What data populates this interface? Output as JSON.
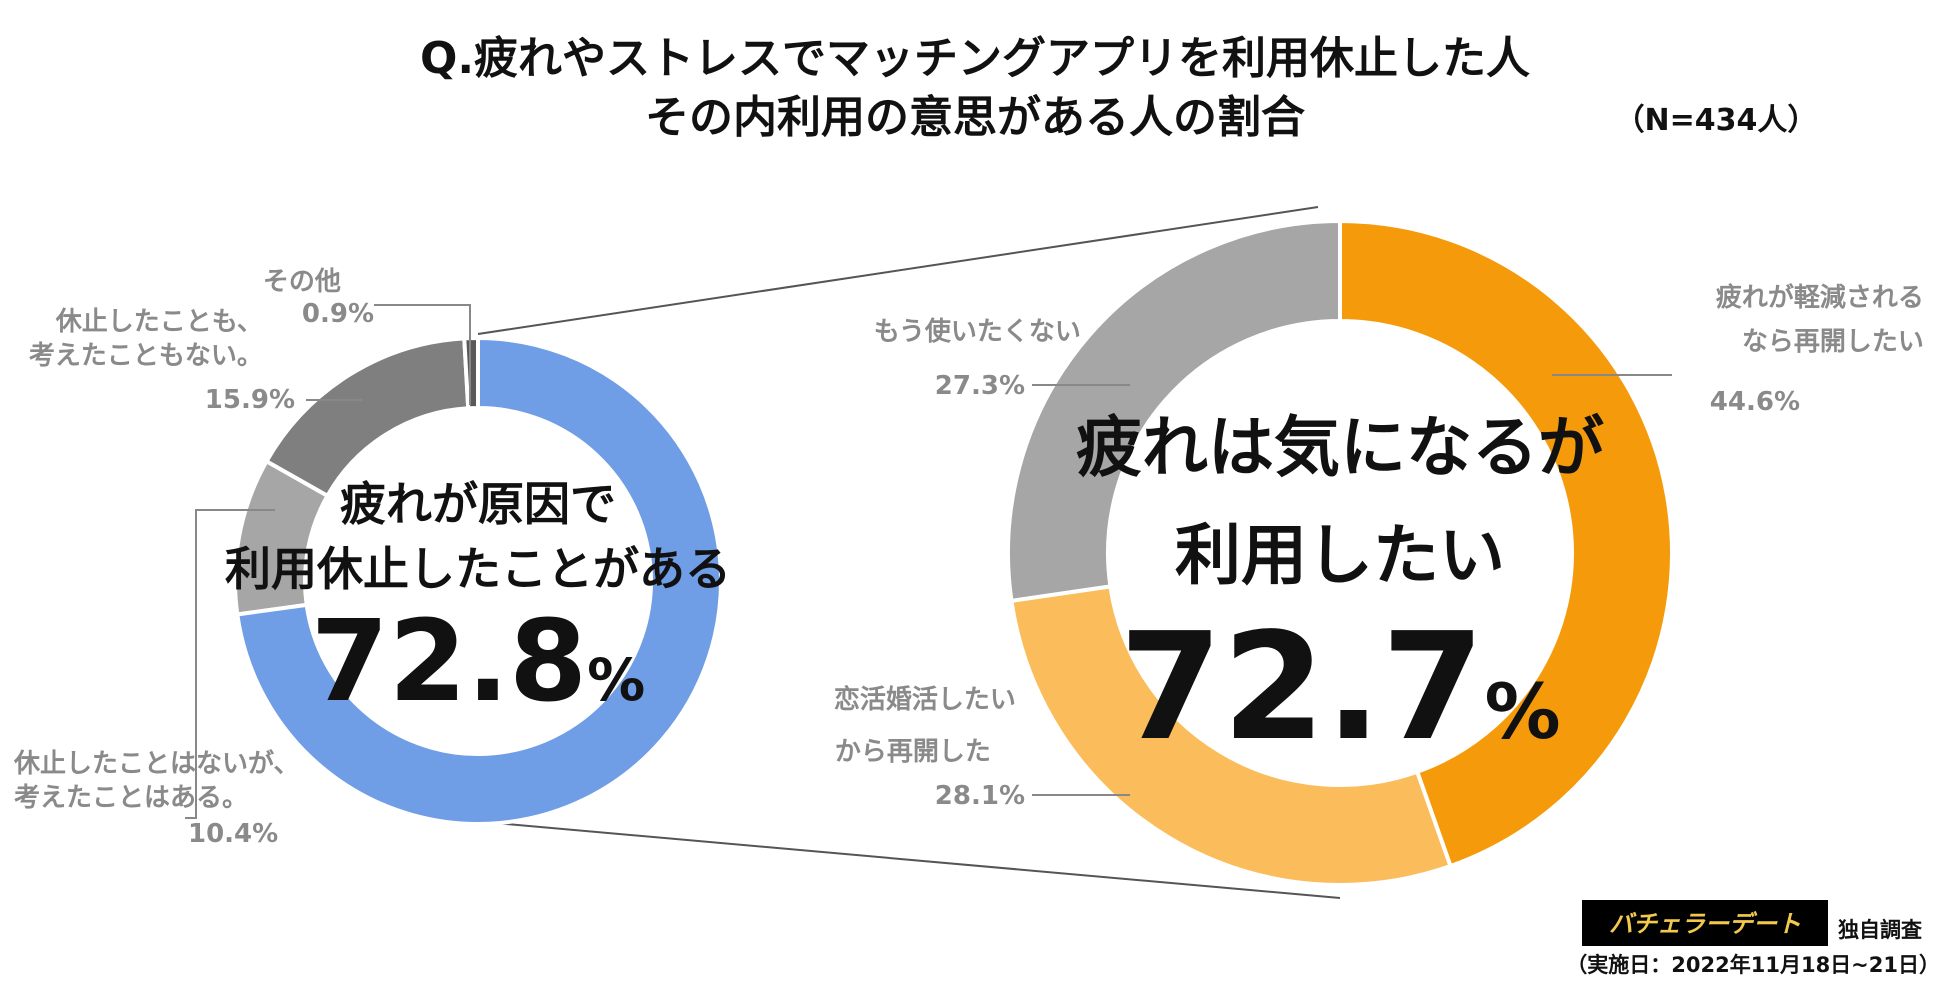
{
  "title": {
    "line1": "Q.疲れやストレスでマッチングアプリを利用休止した人",
    "line2": "その内利用の意思がある人の割合",
    "sample": "（N=434人）"
  },
  "chart_data": [
    {
      "type": "pie",
      "categories": [
        "休止したことはないが、考えたことはある。",
        "休止したことも、考えたこともない。",
        "その他",
        "疲れが原因で利用休止したことがある"
      ],
      "values": [
        10.4,
        15.9,
        0.9,
        72.8
      ],
      "colors": [
        "#a6a6a6",
        "#7f7f7f",
        "#595959",
        "#6f9de6"
      ],
      "center_text": {
        "line1": "疲れが原因で",
        "line2": "利用休止したことがある",
        "value": "72.8",
        "unit": "%"
      },
      "labels": [
        {
          "lines": [
            "その他",
            "0.9%"
          ]
        },
        {
          "lines": [
            "休止したことも、",
            "考えたこともない。",
            "15.9%"
          ]
        },
        {
          "lines": [
            "休止したことはないが、",
            "考えたことはある。",
            "10.4%"
          ]
        }
      ]
    },
    {
      "type": "pie",
      "categories": [
        "疲れが軽減されるなら再開したい",
        "恋活婚活したいから再開した",
        "もう使いたくない"
      ],
      "values": [
        44.6,
        28.1,
        27.3
      ],
      "colors": [
        "#f59b0b",
        "#fbbd5b",
        "#a6a6a6"
      ],
      "center_text": {
        "line1": "疲れは気になるが",
        "line2": "利用したい",
        "value": "72.7",
        "unit": "%"
      },
      "labels": [
        {
          "lines": [
            "疲れが軽減される",
            "なら再開したい",
            "44.6%"
          ]
        },
        {
          "lines": [
            "恋活婚活したい",
            "から再開した",
            "28.1%"
          ]
        },
        {
          "lines": [
            "もう使いたくない",
            "27.3%"
          ]
        }
      ]
    }
  ],
  "footer": {
    "logo_text": "バチェラーデート",
    "survey_label": "独自調査",
    "period": "（実施日：2022年11月18日~21日）"
  }
}
